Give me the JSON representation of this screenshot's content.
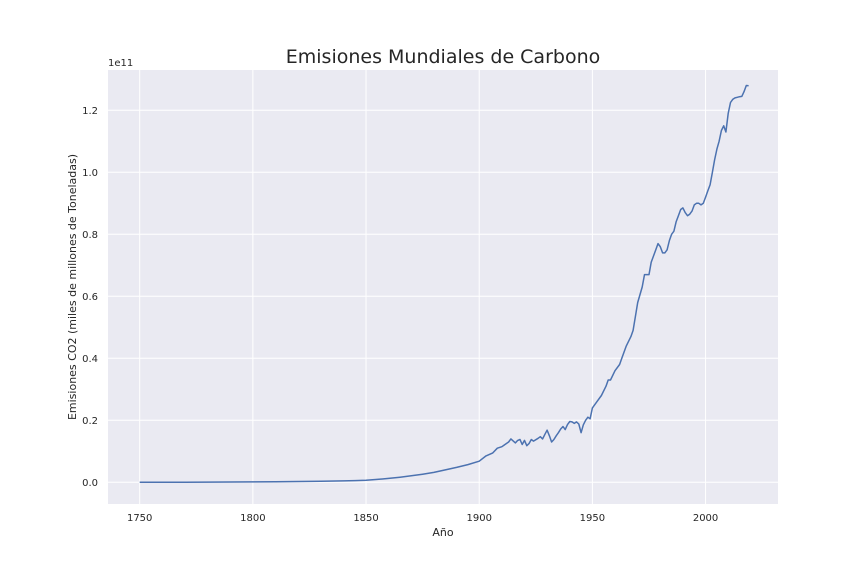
{
  "chart_data": {
    "type": "line",
    "title": "Emisiones Mundiales de Carbono",
    "xlabel": "Año",
    "ylabel": "Emisiones CO2 (miles de millones de Toneladas)",
    "y_offset_label": "1e11",
    "xlim": [
      1736,
      2032
    ],
    "ylim": [
      -0.07,
      1.33
    ],
    "y_scale_factor": 100000000000.0,
    "grid": true,
    "background": "#eaeaf2",
    "line_color": "#4c72b0",
    "x_ticks": [
      {
        "value": 1750,
        "label": "1750"
      },
      {
        "value": 1800,
        "label": "1800"
      },
      {
        "value": 1850,
        "label": "1850"
      },
      {
        "value": 1900,
        "label": "1900"
      },
      {
        "value": 1950,
        "label": "1950"
      },
      {
        "value": 2000,
        "label": "2000"
      }
    ],
    "y_ticks": [
      {
        "value": 0.0,
        "label": "0.0"
      },
      {
        "value": 0.2,
        "label": "0.2"
      },
      {
        "value": 0.4,
        "label": "0.4"
      },
      {
        "value": 0.6,
        "label": "0.6"
      },
      {
        "value": 0.8,
        "label": "0.8"
      },
      {
        "value": 1.0,
        "label": "1.0"
      },
      {
        "value": 1.2,
        "label": "1.2"
      }
    ],
    "series": [
      {
        "x": [
          1750,
          1760,
          1770,
          1780,
          1790,
          1800,
          1810,
          1820,
          1830,
          1840,
          1845,
          1850,
          1855,
          1860,
          1865,
          1870,
          1875,
          1880,
          1885,
          1890,
          1895,
          1900,
          1903,
          1906,
          1908,
          1910,
          1911,
          1913,
          1914,
          1916,
          1917,
          1918,
          1919,
          1920,
          1921,
          1922,
          1923,
          1924,
          1926,
          1927,
          1928,
          1929,
          1930,
          1931,
          1932,
          1933,
          1934,
          1935,
          1936,
          1937,
          1938,
          1939,
          1940,
          1941,
          1942,
          1943,
          1944,
          1945,
          1946,
          1947,
          1948,
          1949,
          1950,
          1952,
          1954,
          1956,
          1957,
          1958,
          1960,
          1962,
          1963,
          1965,
          1967,
          1968,
          1970,
          1972,
          1973,
          1974,
          1975,
          1976,
          1977,
          1978,
          1979,
          1980,
          1981,
          1982,
          1983,
          1984,
          1985,
          1986,
          1987,
          1988,
          1989,
          1990,
          1991,
          1992,
          1993,
          1994,
          1995,
          1996,
          1997,
          1998,
          1999,
          2000,
          2001,
          2002,
          2003,
          2004,
          2005,
          2006,
          2007,
          2008,
          2009,
          2010,
          2011,
          2012,
          2013,
          2014,
          2015,
          2016,
          2017,
          2018,
          2019
        ],
        "y": [
          0.0,
          0.0002,
          0.0004,
          0.0006,
          0.0009,
          0.0013,
          0.0018,
          0.0025,
          0.0033,
          0.0045,
          0.0055,
          0.0068,
          0.0095,
          0.0125,
          0.0165,
          0.021,
          0.026,
          0.032,
          0.04,
          0.048,
          0.057,
          0.068,
          0.085,
          0.095,
          0.11,
          0.115,
          0.12,
          0.13,
          0.14,
          0.127,
          0.135,
          0.138,
          0.122,
          0.135,
          0.118,
          0.125,
          0.138,
          0.133,
          0.142,
          0.147,
          0.14,
          0.155,
          0.168,
          0.15,
          0.13,
          0.138,
          0.15,
          0.16,
          0.172,
          0.18,
          0.17,
          0.186,
          0.196,
          0.195,
          0.19,
          0.195,
          0.188,
          0.16,
          0.185,
          0.2,
          0.21,
          0.205,
          0.24,
          0.26,
          0.28,
          0.31,
          0.33,
          0.33,
          0.36,
          0.38,
          0.4,
          0.44,
          0.47,
          0.49,
          0.58,
          0.63,
          0.67,
          0.67,
          0.67,
          0.71,
          0.73,
          0.75,
          0.77,
          0.76,
          0.74,
          0.74,
          0.75,
          0.78,
          0.8,
          0.81,
          0.84,
          0.86,
          0.88,
          0.885,
          0.87,
          0.86,
          0.865,
          0.875,
          0.895,
          0.9,
          0.9,
          0.895,
          0.9,
          0.92,
          0.94,
          0.96,
          1.0,
          1.04,
          1.075,
          1.1,
          1.135,
          1.15,
          1.13,
          1.19,
          1.225,
          1.235,
          1.24,
          1.242,
          1.244,
          1.245,
          1.26,
          1.28,
          1.279
        ]
      }
    ]
  }
}
